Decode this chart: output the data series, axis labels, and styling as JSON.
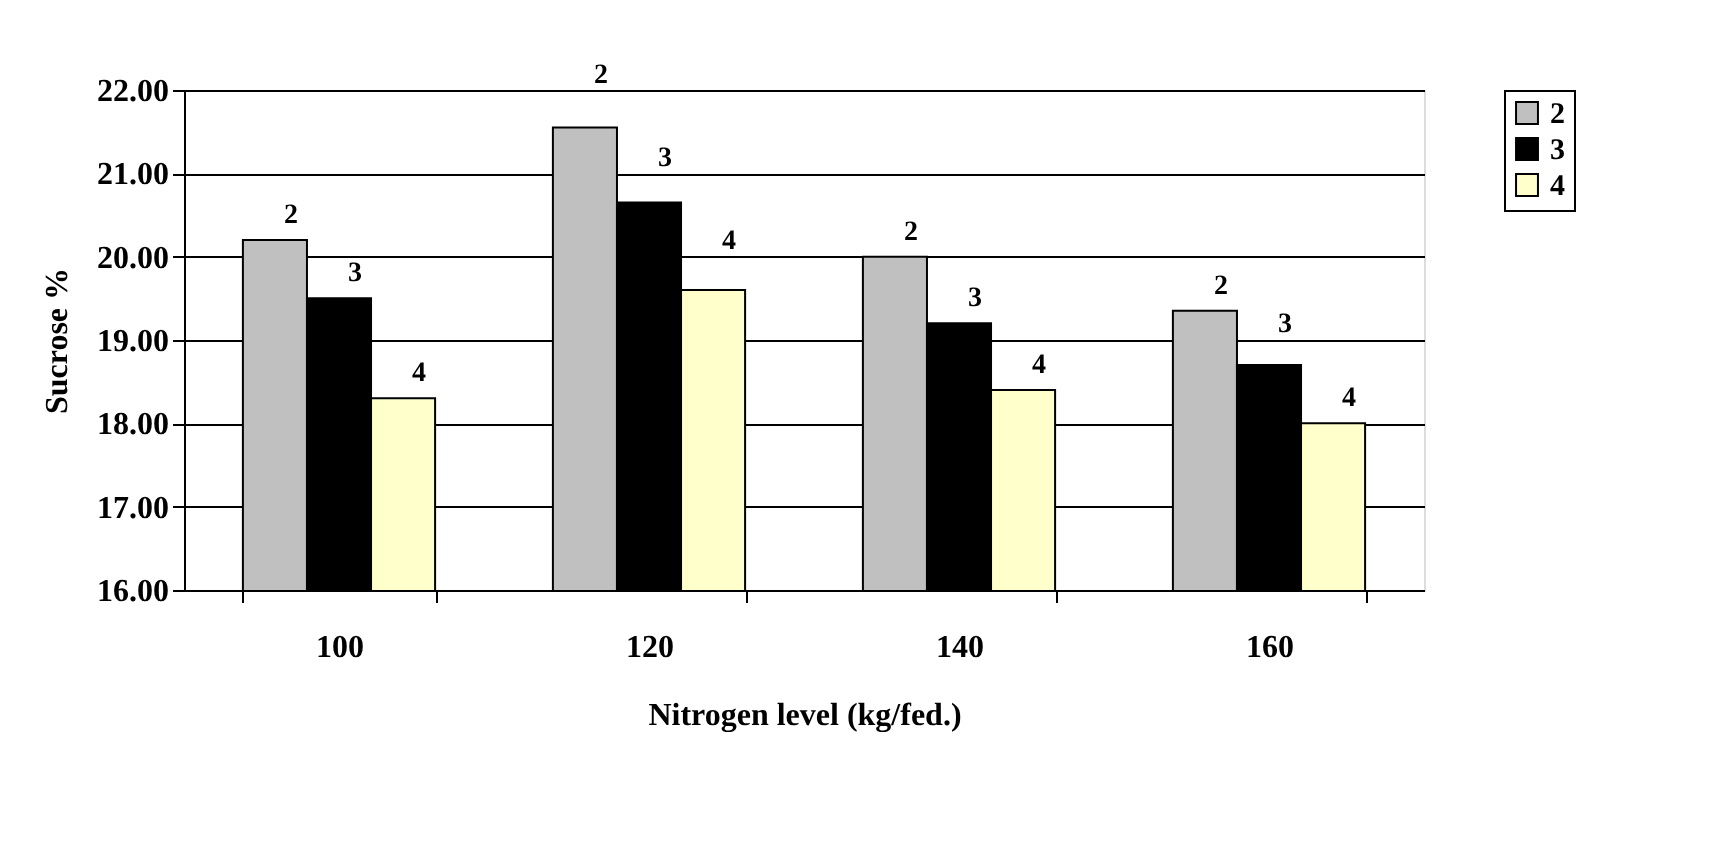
{
  "chart_data": {
    "type": "bar",
    "xlabel": "Nitrogen level (kg/fed.)",
    "ylabel": "Sucrose %",
    "categories": [
      "100",
      "120",
      "140",
      "160"
    ],
    "series": [
      {
        "name": "2",
        "color": "#c0c0c0",
        "values": [
          20.2,
          21.55,
          20.0,
          19.35
        ]
      },
      {
        "name": "3",
        "color": "#000000",
        "values": [
          19.5,
          20.65,
          19.2,
          18.7
        ]
      },
      {
        "name": "4",
        "color": "#ffffcc",
        "values": [
          18.3,
          19.6,
          18.4,
          18.0
        ]
      }
    ],
    "ylim": [
      16,
      22
    ],
    "yticks": [
      {
        "value": 16,
        "label": "16.00"
      },
      {
        "value": 17,
        "label": "17.00"
      },
      {
        "value": 18,
        "label": "18.00"
      },
      {
        "value": 19,
        "label": "19.00"
      },
      {
        "value": 20,
        "label": "20.00"
      },
      {
        "value": 21,
        "label": "21.00"
      },
      {
        "value": 22,
        "label": "22.00"
      }
    ],
    "grid": "y",
    "legend": "top right"
  }
}
